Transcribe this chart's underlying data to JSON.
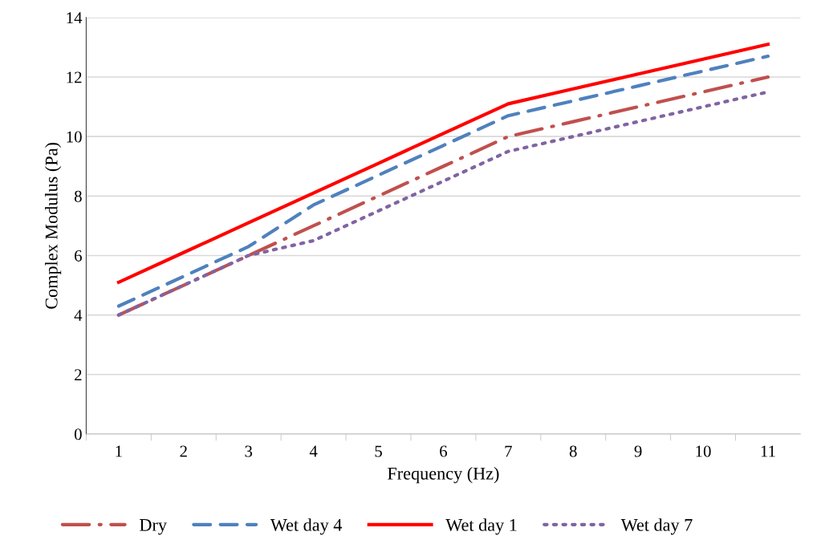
{
  "chart_data": {
    "type": "line",
    "xlabel": "Frequency (Hz)",
    "ylabel": "Complex Modulus (Pa)",
    "categories": [
      "1",
      "2",
      "3",
      "4",
      "5",
      "6",
      "7",
      "8",
      "9",
      "10",
      "11"
    ],
    "series": [
      {
        "name": "Dry",
        "color": "#c0504d",
        "line_style": "dashdot",
        "values": [
          4.0,
          5.0,
          6.0,
          7.0,
          8.0,
          9.0,
          10.0,
          10.5,
          11.0,
          11.5,
          12.0
        ]
      },
      {
        "name": "Wet day 4",
        "color": "#4f81bd",
        "line_style": "dashed",
        "values": [
          4.3,
          5.3,
          6.3,
          7.7,
          8.7,
          9.7,
          10.7,
          11.2,
          11.7,
          12.2,
          12.7
        ]
      },
      {
        "name": "Wet day 1",
        "color": "#ff0000",
        "line_style": "solid",
        "values": [
          5.1,
          6.1,
          7.1,
          8.1,
          9.1,
          10.1,
          11.1,
          11.6,
          12.1,
          12.6,
          13.1
        ]
      },
      {
        "name": "Wet day 7",
        "color": "#8064a2",
        "line_style": "dotted",
        "values": [
          4.0,
          5.0,
          6.0,
          6.5,
          7.5,
          8.5,
          9.5,
          10.0,
          10.5,
          11.0,
          11.5
        ]
      }
    ],
    "ylim": [
      0,
      14
    ],
    "yticks": [
      0,
      2,
      4,
      6,
      8,
      10,
      12,
      14
    ],
    "grid": "y",
    "legend": "bottom",
    "marker": "none"
  }
}
